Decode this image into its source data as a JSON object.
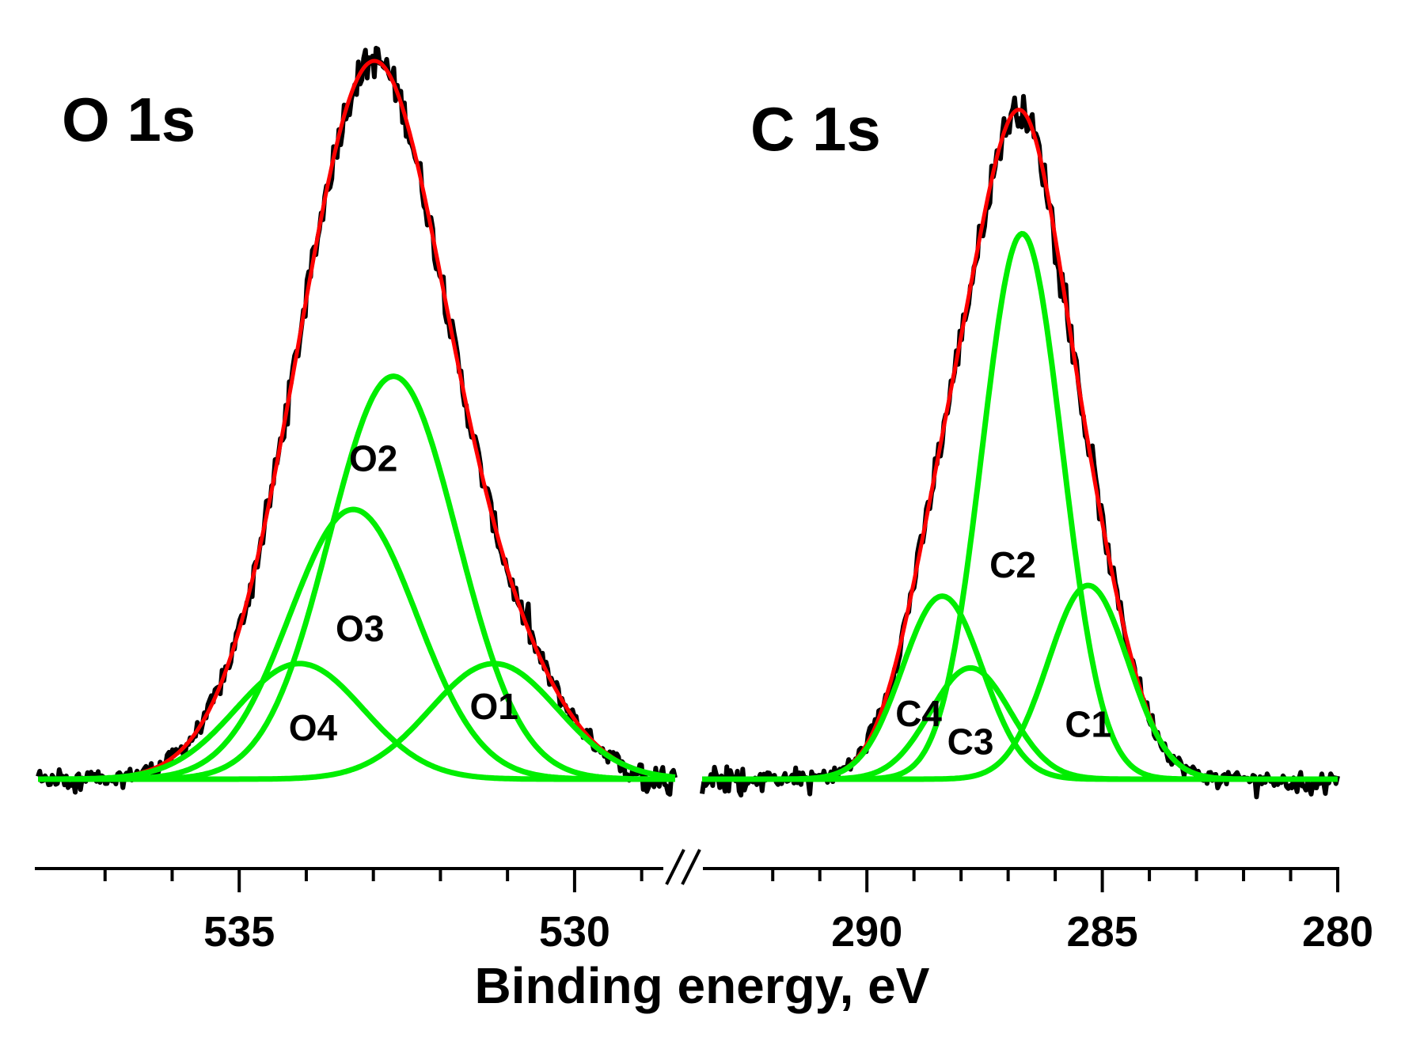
{
  "chart_data": {
    "type": "line",
    "xlabel": "Binding energy, eV",
    "ylabel": "",
    "x_reversed": true,
    "axis_break": true,
    "colors": {
      "data": "#000000",
      "envelope": "#ff0000",
      "component": "#00ee00",
      "axis": "#000000"
    },
    "panels": [
      {
        "title": "O 1s",
        "xlim": [
          538,
          528.5
        ],
        "major_ticks": [
          535,
          530
        ],
        "major_tick_labels": [
          "535",
          "530"
        ],
        "minor_ticks": [
          537,
          536,
          534,
          533,
          532,
          531,
          529
        ],
        "ylim": [
          0,
          1.0
        ],
        "components": [
          {
            "name": "O1",
            "center": 531.2,
            "amplitude": 0.165,
            "sigma": 0.95
          },
          {
            "name": "O2",
            "center": 532.7,
            "amplitude": 0.575,
            "sigma": 0.95
          },
          {
            "name": "O3",
            "center": 533.3,
            "amplitude": 0.385,
            "sigma": 0.95
          },
          {
            "name": "O4",
            "center": 534.1,
            "amplitude": 0.165,
            "sigma": 0.95
          }
        ],
        "labels": [
          {
            "text": "O1",
            "x": 531.2,
            "y": 0.085
          },
          {
            "text": "O2",
            "x": 533.0,
            "y": 0.435
          },
          {
            "text": "O3",
            "x": 533.2,
            "y": 0.195
          },
          {
            "text": "O4",
            "x": 533.9,
            "y": 0.055
          }
        ],
        "measured_peak": {
          "x": 533.1,
          "y": 1.03
        }
      },
      {
        "title": "C 1s",
        "xlim": [
          293.5,
          280
        ],
        "major_ticks": [
          290,
          285,
          280
        ],
        "major_tick_labels": [
          "290",
          "285",
          "280"
        ],
        "minor_ticks": [
          292,
          291,
          289,
          288,
          287,
          286,
          284,
          283,
          282,
          281
        ],
        "ylim": [
          0,
          1.0
        ],
        "components": [
          {
            "name": "C1",
            "center": 285.3,
            "amplitude": 0.27,
            "sigma": 0.85
          },
          {
            "name": "C2",
            "center": 286.7,
            "amplitude": 0.76,
            "sigma": 0.85
          },
          {
            "name": "C3",
            "center": 287.8,
            "amplitude": 0.155,
            "sigma": 0.85
          },
          {
            "name": "C4",
            "center": 288.4,
            "amplitude": 0.255,
            "sigma": 0.85
          }
        ],
        "labels": [
          {
            "text": "C1",
            "x": 285.3,
            "y": 0.06
          },
          {
            "text": "C2",
            "x": 286.9,
            "y": 0.285
          },
          {
            "text": "C3",
            "x": 287.8,
            "y": 0.035
          },
          {
            "text": "C4",
            "x": 288.9,
            "y": 0.075
          }
        ],
        "measured_peak": {
          "x": 286.7,
          "y": 0.96
        }
      }
    ]
  }
}
